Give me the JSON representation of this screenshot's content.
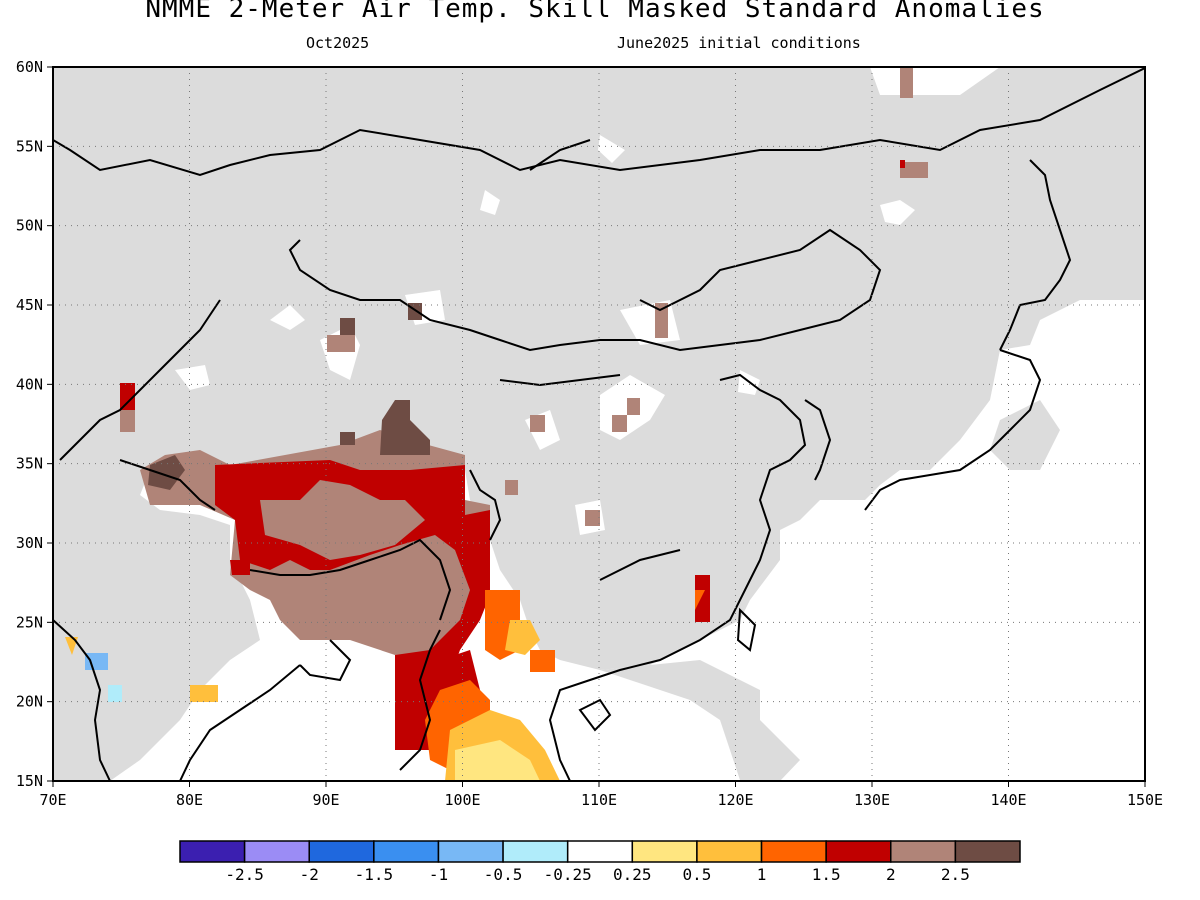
{
  "header": {
    "title": "NMME 2-Meter Air Temp. Skill Masked Standard Anomalies",
    "month": "Oct2025",
    "init": "June2025 initial conditions"
  },
  "map": {
    "lon_range": [
      70,
      150
    ],
    "lat_range": [
      15,
      60
    ],
    "lon_ticks": [
      "70E",
      "80E",
      "90E",
      "100E",
      "110E",
      "120E",
      "130E",
      "140E",
      "150E"
    ],
    "lat_ticks": [
      "15N",
      "20N",
      "25N",
      "30N",
      "35N",
      "40N",
      "45N",
      "50N",
      "55N",
      "60N"
    ],
    "masked_color": "#dcdcdc",
    "grid": "dotted"
  },
  "colorbar": {
    "colors": [
      "#3b1fb0",
      "#9b8cf5",
      "#1f68de",
      "#3a8ff0",
      "#78b8f5",
      "#b0ecfa",
      "#ffffff",
      "#ffe680",
      "#ffbf3c",
      "#ff6400",
      "#c00000",
      "#b08478",
      "#6e4c44"
    ],
    "labels": [
      "-2.5",
      "-2",
      "-1.5",
      "-1",
      "-0.5",
      "-0.25",
      "0.25",
      "0.5",
      "1",
      "1.5",
      "2",
      "2.5"
    ]
  }
}
